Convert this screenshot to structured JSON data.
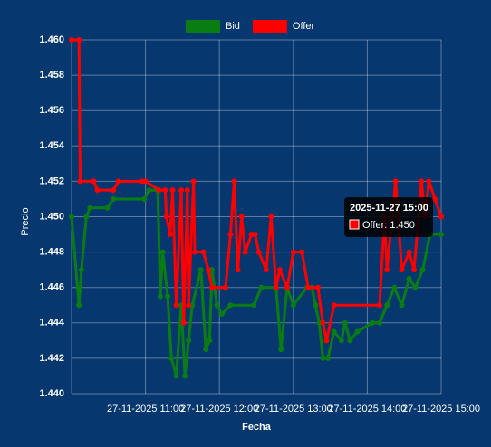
{
  "chart_data": {
    "type": "line",
    "x_label": "Fecha",
    "y_label": "Precio",
    "xlim": [
      "2025-11-27 10:00",
      "2025-11-27 15:00"
    ],
    "xticks": [
      {
        "value": "2025-11-27 11:00",
        "label": "27-11-2025 11:00"
      },
      {
        "value": "2025-11-27 12:00",
        "label": "27-11-2025 12:00"
      },
      {
        "value": "2025-11-27 13:00",
        "label": "27-11-2025 13:00"
      },
      {
        "value": "2025-11-27 14:00",
        "label": "27-11-2025 14:00"
      },
      {
        "value": "2025-11-27 15:00",
        "label": "27-11-2025 15:00"
      }
    ],
    "ylim": [
      1.44,
      1.46
    ],
    "yticks": [
      {
        "value": 1.44,
        "label": "1.440"
      },
      {
        "value": 1.442,
        "label": "1.442"
      },
      {
        "value": 1.444,
        "label": "1.444"
      },
      {
        "value": 1.446,
        "label": "1.446"
      },
      {
        "value": 1.448,
        "label": "1.448"
      },
      {
        "value": 1.45,
        "label": "1.450"
      },
      {
        "value": 1.452,
        "label": "1.452"
      },
      {
        "value": 1.454,
        "label": "1.454"
      },
      {
        "value": 1.456,
        "label": "1.456"
      },
      {
        "value": 1.458,
        "label": "1.458"
      },
      {
        "value": 1.46,
        "label": "1.460"
      }
    ],
    "grid": true,
    "legend": "top",
    "series": [
      {
        "name": "Bid",
        "color": "#0a7d12",
        "x": [
          "2025-11-27 10:00",
          "2025-11-27 10:06",
          "2025-11-27 10:08",
          "2025-11-27 10:12",
          "2025-11-27 10:15",
          "2025-11-27 10:29",
          "2025-11-27 10:34",
          "2025-11-27 10:59",
          "2025-11-27 11:03",
          "2025-11-27 11:10",
          "2025-11-27 11:12",
          "2025-11-27 11:14",
          "2025-11-27 11:18",
          "2025-11-27 11:21",
          "2025-11-27 11:25",
          "2025-11-27 11:29",
          "2025-11-27 11:32",
          "2025-11-27 11:35",
          "2025-11-27 11:38",
          "2025-11-27 11:45",
          "2025-11-27 11:49",
          "2025-11-27 11:52",
          "2025-11-27 11:54",
          "2025-11-27 11:58",
          "2025-11-27 12:02",
          "2025-11-27 12:09",
          "2025-11-27 12:28",
          "2025-11-27 12:34",
          "2025-11-27 12:46",
          "2025-11-27 12:50",
          "2025-11-27 12:55",
          "2025-11-27 13:00",
          "2025-11-27 13:11",
          "2025-11-27 13:15",
          "2025-11-27 13:18",
          "2025-11-27 13:21",
          "2025-11-27 13:24",
          "2025-11-27 13:28",
          "2025-11-27 13:33",
          "2025-11-27 13:39",
          "2025-11-27 13:42",
          "2025-11-27 13:46",
          "2025-11-27 13:52",
          "2025-11-27 14:04",
          "2025-11-27 14:10",
          "2025-11-27 14:16",
          "2025-11-27 14:22",
          "2025-11-27 14:28",
          "2025-11-27 14:34",
          "2025-11-27 14:39",
          "2025-11-27 14:45",
          "2025-11-27 14:51",
          "2025-11-27 15:00"
        ],
        "values": [
          1.45,
          1.445,
          1.447,
          1.45,
          1.4505,
          1.4505,
          1.451,
          1.451,
          1.4515,
          1.4515,
          1.4455,
          1.448,
          1.4455,
          1.442,
          1.441,
          1.445,
          1.441,
          1.443,
          1.445,
          1.447,
          1.4425,
          1.443,
          1.447,
          1.445,
          1.4445,
          1.445,
          1.445,
          1.446,
          1.446,
          1.4425,
          1.446,
          1.445,
          1.446,
          1.446,
          1.445,
          1.444,
          1.442,
          1.442,
          1.4435,
          1.443,
          1.444,
          1.443,
          1.4435,
          1.444,
          1.444,
          1.445,
          1.446,
          1.445,
          1.4465,
          1.446,
          1.447,
          1.449,
          1.449
        ]
      },
      {
        "name": "Offer",
        "color": "#ff0000",
        "x": [
          "2025-11-27 10:00",
          "2025-11-27 10:06",
          "2025-11-27 10:07",
          "2025-11-27 10:18",
          "2025-11-27 10:21",
          "2025-11-27 10:34",
          "2025-11-27 10:38",
          "2025-11-27 10:57",
          "2025-11-27 11:00",
          "2025-11-27 11:11",
          "2025-11-27 11:16",
          "2025-11-27 11:17",
          "2025-11-27 11:20",
          "2025-11-27 11:22",
          "2025-11-27 11:25",
          "2025-11-27 11:29",
          "2025-11-27 11:31",
          "2025-11-27 11:34",
          "2025-11-27 11:35",
          "2025-11-27 11:39",
          "2025-11-27 11:40",
          "2025-11-27 11:47",
          "2025-11-27 11:51",
          "2025-11-27 11:54",
          "2025-11-27 12:05",
          "2025-11-27 12:09",
          "2025-11-27 12:12",
          "2025-11-27 12:15",
          "2025-11-27 12:18",
          "2025-11-27 12:21",
          "2025-11-27 12:26",
          "2025-11-27 12:29",
          "2025-11-27 12:32",
          "2025-11-27 12:38",
          "2025-11-27 12:42",
          "2025-11-27 12:46",
          "2025-11-27 12:49",
          "2025-11-27 12:55",
          "2025-11-27 13:00",
          "2025-11-27 13:07",
          "2025-11-27 13:12",
          "2025-11-27 13:20",
          "2025-11-27 13:24",
          "2025-11-27 13:27",
          "2025-11-27 13:33",
          "2025-11-27 14:10",
          "2025-11-27 14:14",
          "2025-11-27 14:16",
          "2025-11-27 14:23",
          "2025-11-27 14:28",
          "2025-11-27 14:34",
          "2025-11-27 14:38",
          "2025-11-27 14:44",
          "2025-11-27 14:47",
          "2025-11-27 14:50",
          "2025-11-27 14:55",
          "2025-11-27 15:00"
        ],
        "values": [
          1.46,
          1.46,
          1.452,
          1.452,
          1.4515,
          1.4515,
          1.452,
          1.452,
          1.452,
          1.4515,
          1.4515,
          1.45,
          1.449,
          1.4515,
          1.445,
          1.4515,
          1.444,
          1.4515,
          1.445,
          1.452,
          1.448,
          1.448,
          1.447,
          1.446,
          1.446,
          1.449,
          1.452,
          1.447,
          1.45,
          1.448,
          1.449,
          1.449,
          1.448,
          1.447,
          1.45,
          1.446,
          1.447,
          1.446,
          1.448,
          1.448,
          1.446,
          1.446,
          1.444,
          1.443,
          1.445,
          1.445,
          1.45,
          1.447,
          1.452,
          1.447,
          1.448,
          1.447,
          1.452,
          1.45,
          1.452,
          1.451,
          1.45
        ]
      }
    ],
    "tooltip": {
      "title": "2025-11-27 15:00",
      "label": "Offer: 1.450"
    }
  }
}
